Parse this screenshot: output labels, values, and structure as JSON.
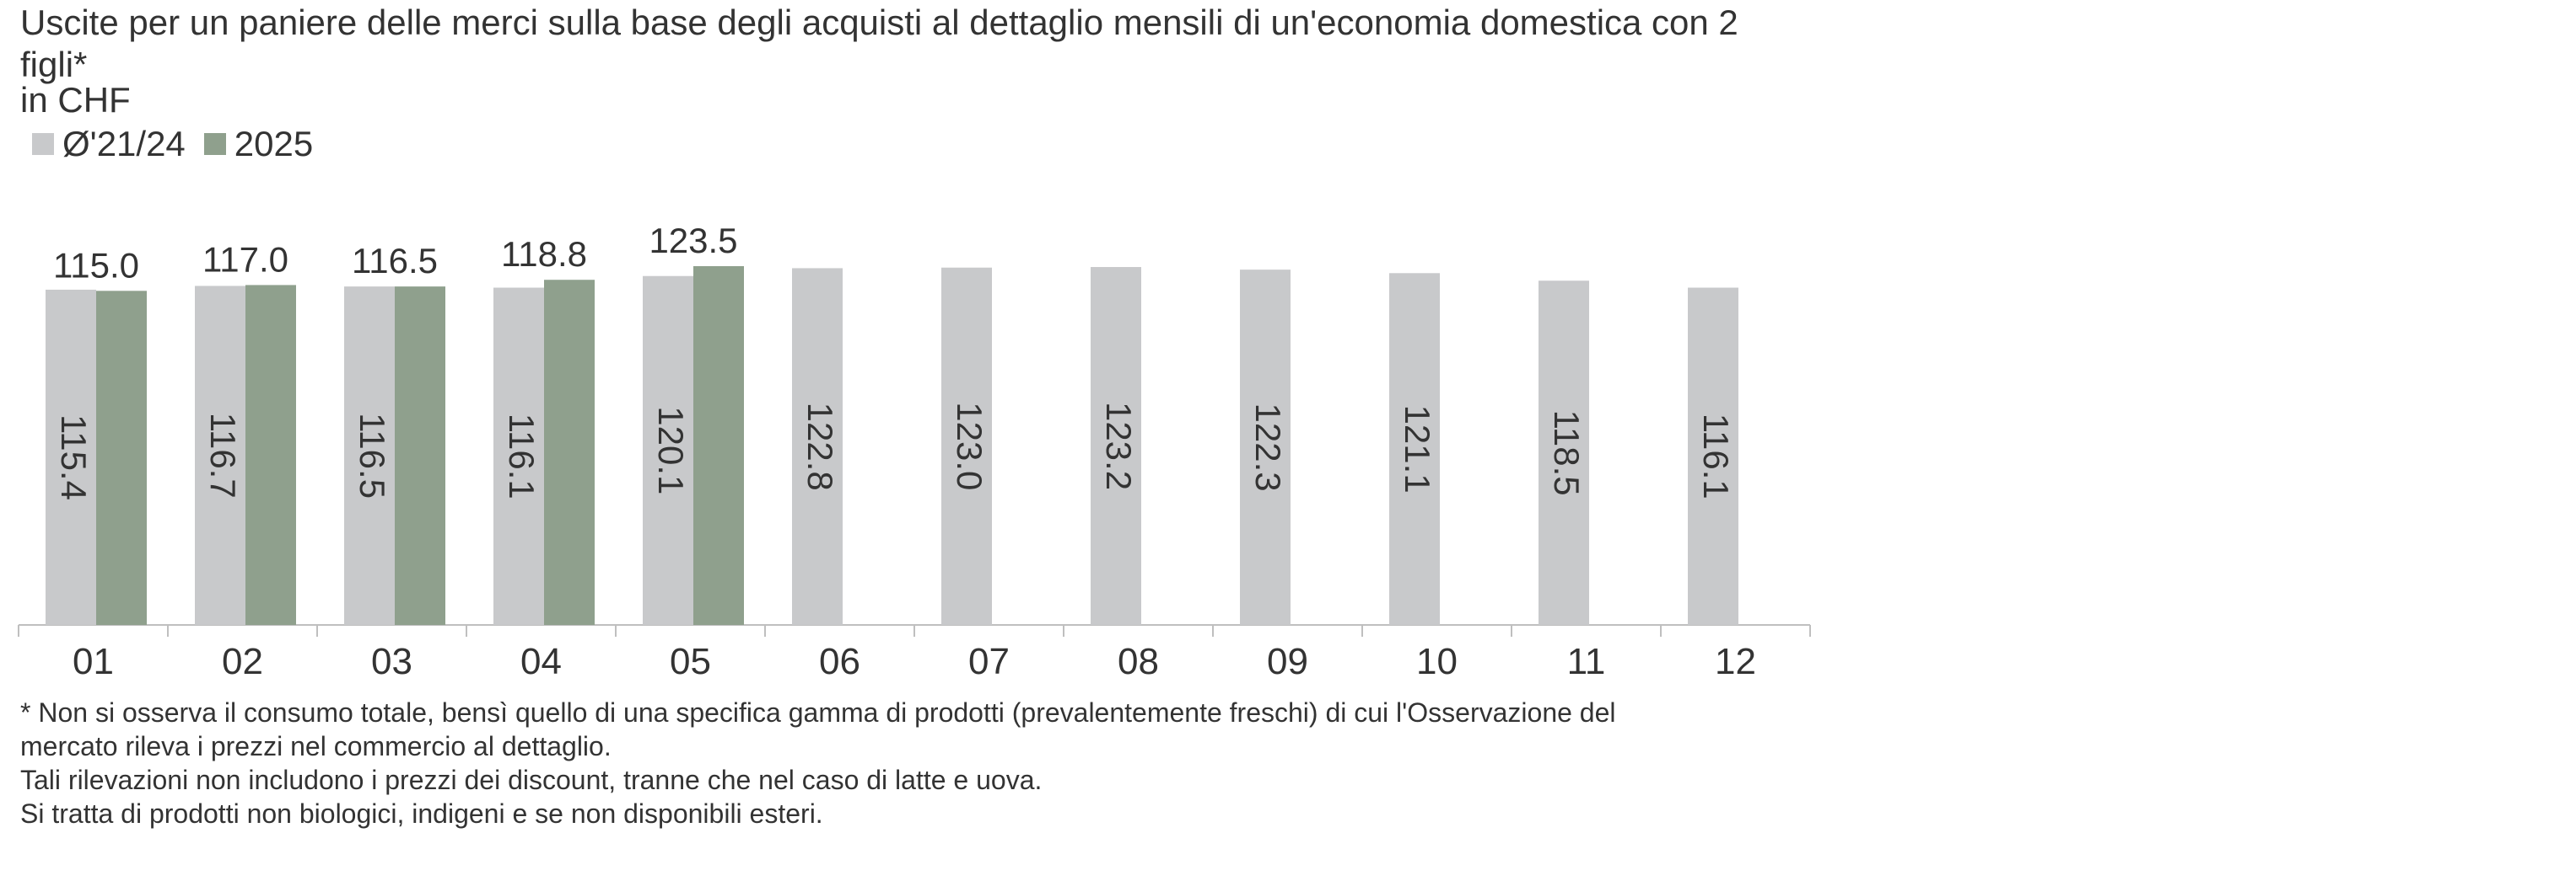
{
  "chart_data": {
    "type": "bar",
    "title": "Uscite per un paniere delle merci sulla base degli acquisti al dettaglio mensili di un'economia domestica con 2 figli*",
    "unit": "in CHF",
    "categories": [
      "01",
      "02",
      "03",
      "04",
      "05",
      "06",
      "07",
      "08",
      "09",
      "10",
      "11",
      "12"
    ],
    "series": [
      {
        "name": "Ø'21/24",
        "color": "#c8c9cb",
        "values": [
          115.4,
          116.7,
          116.5,
          116.1,
          120.1,
          122.8,
          123.0,
          123.2,
          122.3,
          121.1,
          118.5,
          116.1
        ],
        "labels": [
          "115.4",
          "116.7",
          "116.5",
          "116.1",
          "120.1",
          "122.8",
          "123.0",
          "123.2",
          "122.3",
          "121.1",
          "118.5",
          "116.1"
        ]
      },
      {
        "name": "2025",
        "color": "#8fa08d",
        "values": [
          115.0,
          117.0,
          116.5,
          118.8,
          123.5,
          null,
          null,
          null,
          null,
          null,
          null,
          null
        ],
        "labels": [
          "115.0",
          "117.0",
          "116.5",
          "118.8",
          "123.5"
        ]
      }
    ],
    "ylim": [
      0,
      123.5
    ],
    "grid": false,
    "legend_position": "top-left"
  },
  "footnote": {
    "lines": [
      "* Non si osserva il consumo totale, bensì quello di una specifica gamma di prodotti  (prevalentemente freschi) di cui l'Osservazione del",
      "mercato rileva i prezzi nel commercio al dettaglio.",
      "Tali rilevazioni non includono i prezzi dei discount, tranne che nel caso di latte e uova.",
      "Si tratta di prodotti non biologici, indigeni e se non disponibili esteri."
    ]
  }
}
